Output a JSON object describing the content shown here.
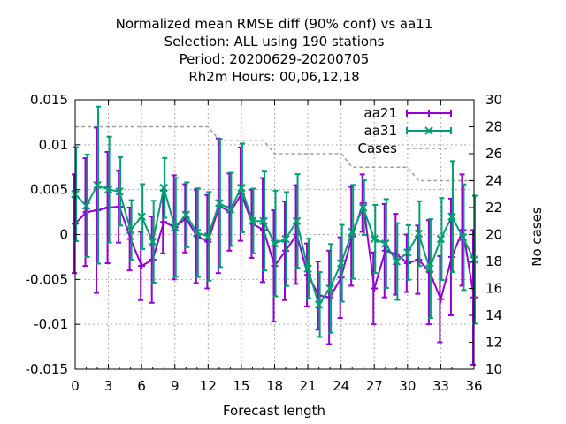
{
  "chart_data": {
    "type": "line",
    "title_lines": [
      "Normalized mean RMSE diff (90% conf) vs aa11",
      "Selection: ALL using   190 stations",
      "Period: 20200629-20200705",
      "Rh2m   Hours:  00,06,12,18"
    ],
    "xlabel": "Forecast length",
    "ylabel_right": "No cases",
    "xlim": [
      0,
      36
    ],
    "ylim": [
      -0.015,
      0.015
    ],
    "y2lim": [
      10,
      30
    ],
    "x_ticks": [
      "0",
      "3",
      "6",
      "9",
      "12",
      "15",
      "18",
      "21",
      "24",
      "27",
      "30",
      "33",
      "36"
    ],
    "y_ticks": [
      "0.015",
      "0.01",
      "0.005",
      "0",
      "-0.005",
      "-0.01",
      "-0.015"
    ],
    "y2_ticks": [
      "30",
      "28",
      "26",
      "24",
      "22",
      "20",
      "18",
      "16",
      "14",
      "12",
      "10"
    ],
    "grid": true,
    "legend_position": "top-right",
    "series": [
      {
        "name": "aa21",
        "color": "#9400d3",
        "marker": "plus",
        "x": [
          0,
          1,
          2,
          3,
          4,
          5,
          6,
          7,
          8,
          9,
          10,
          11,
          12,
          13,
          14,
          15,
          16,
          17,
          18,
          19,
          20,
          21,
          22,
          23,
          24,
          25,
          26,
          27,
          28,
          29,
          30,
          31,
          32,
          33,
          34,
          35,
          36
        ],
        "y": [
          0.0012,
          0.0025,
          0.0027,
          0.003,
          0.0031,
          -0.0005,
          -0.0035,
          -0.0028,
          0.0014,
          0.0008,
          0.0018,
          -0.0002,
          -0.0008,
          0.0032,
          0.0025,
          0.0045,
          0.0012,
          0.0005,
          -0.0035,
          -0.0018,
          0.0,
          -0.0045,
          -0.0068,
          -0.007,
          -0.0048,
          -0.0002,
          0.0035,
          -0.006,
          -0.0018,
          -0.0022,
          -0.0032,
          -0.0028,
          -0.0042,
          -0.0072,
          -0.0025,
          0.0005,
          -0.007
        ],
        "err": [
          0.0055,
          0.006,
          0.0092,
          0.0062,
          0.004,
          0.0035,
          0.0038,
          0.0048,
          0.0035,
          0.0058,
          0.0038,
          0.0052,
          0.0052,
          0.0075,
          0.0043,
          0.0052,
          0.0038,
          0.0058,
          0.0062,
          0.0055,
          0.0055,
          0.0035,
          0.0038,
          0.0052,
          0.0045,
          0.0055,
          0.0032,
          0.004,
          0.0052,
          0.0045,
          0.0032,
          0.0038,
          0.0058,
          0.0048,
          0.0065,
          0.0062,
          0.0075
        ]
      },
      {
        "name": "aa31",
        "color": "#009e73",
        "marker": "x",
        "x": [
          0,
          1,
          2,
          3,
          4,
          5,
          6,
          7,
          8,
          9,
          10,
          11,
          12,
          13,
          14,
          15,
          16,
          17,
          18,
          19,
          20,
          21,
          22,
          23,
          24,
          25,
          26,
          27,
          28,
          29,
          30,
          31,
          32,
          33,
          34,
          35,
          36
        ],
        "y": [
          0.0045,
          0.0032,
          0.0055,
          0.005,
          0.0048,
          0.0005,
          0.002,
          -0.0008,
          0.0052,
          0.0008,
          0.0022,
          0.0002,
          -0.0002,
          0.0035,
          0.0028,
          0.0052,
          0.0015,
          0.0015,
          -0.001,
          -0.0005,
          0.0015,
          -0.0038,
          -0.0078,
          -0.006,
          -0.0032,
          0.0003,
          0.003,
          -0.0005,
          -0.001,
          -0.003,
          -0.002,
          0.0001,
          -0.0038,
          -0.0005,
          0.002,
          -0.0003,
          -0.0028
        ]
      },
      {
        "name": "Cases",
        "color": "#a0a0a0",
        "dashed": true,
        "axis": "right",
        "x": [
          0,
          12,
          13,
          17,
          18,
          19,
          20,
          24,
          25,
          27,
          28,
          30,
          31,
          36
        ],
        "y": [
          28,
          28,
          27,
          27,
          26,
          26,
          26,
          26,
          25,
          25,
          25,
          25,
          24,
          24
        ]
      }
    ]
  }
}
